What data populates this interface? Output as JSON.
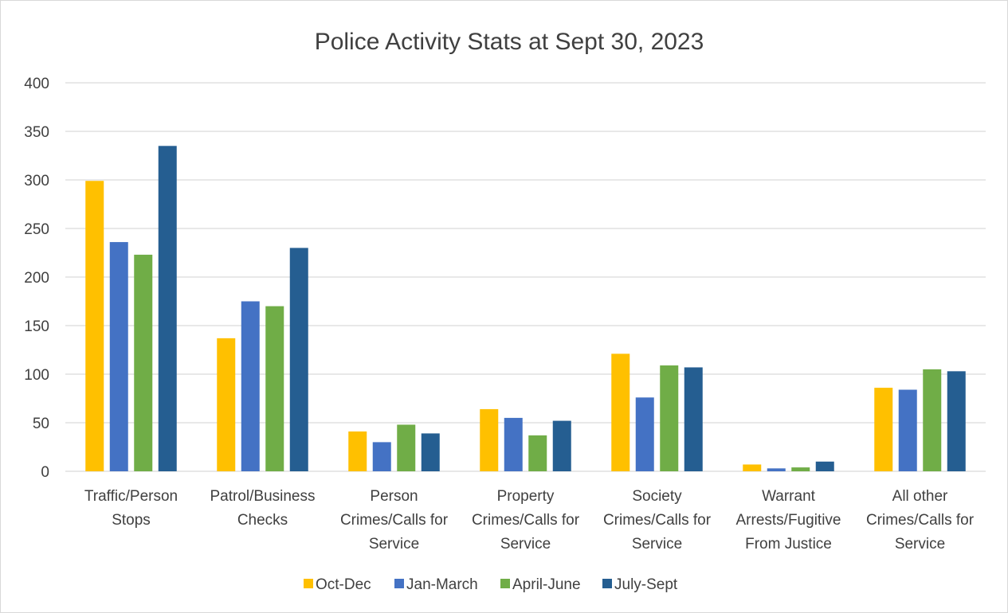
{
  "chart_data": {
    "type": "bar",
    "title": "Police Activity Stats at Sept 30, 2023",
    "xlabel": "",
    "ylabel": "",
    "ylim": [
      0,
      400
    ],
    "yticks": [
      0,
      50,
      100,
      150,
      200,
      250,
      300,
      350,
      400
    ],
    "grid": true,
    "legend_position": "bottom",
    "categories": [
      [
        "Traffic/Person",
        "Stops"
      ],
      [
        "Patrol/Business",
        "Checks"
      ],
      [
        "Person",
        "Crimes/Calls for",
        "Service"
      ],
      [
        "Property",
        "Crimes/Calls for",
        "Service"
      ],
      [
        "Society",
        "Crimes/Calls for",
        "Service"
      ],
      [
        "Warrant",
        "Arrests/Fugitive",
        "From Justice"
      ],
      [
        "All other",
        "Crimes/Calls for",
        "Service"
      ]
    ],
    "series": [
      {
        "name": "Oct-Dec",
        "color": "#FFC000",
        "values": [
          299,
          137,
          41,
          64,
          121,
          7,
          86
        ]
      },
      {
        "name": "Jan-March",
        "color": "#4472C4",
        "values": [
          236,
          175,
          30,
          55,
          76,
          3,
          84
        ]
      },
      {
        "name": "April-June",
        "color": "#70AD47",
        "values": [
          223,
          170,
          48,
          37,
          109,
          4,
          105
        ]
      },
      {
        "name": "July-Sept",
        "color": "#255E91",
        "values": [
          335,
          230,
          39,
          52,
          107,
          10,
          103
        ]
      }
    ],
    "gridline_color": "#d9d9d9"
  }
}
